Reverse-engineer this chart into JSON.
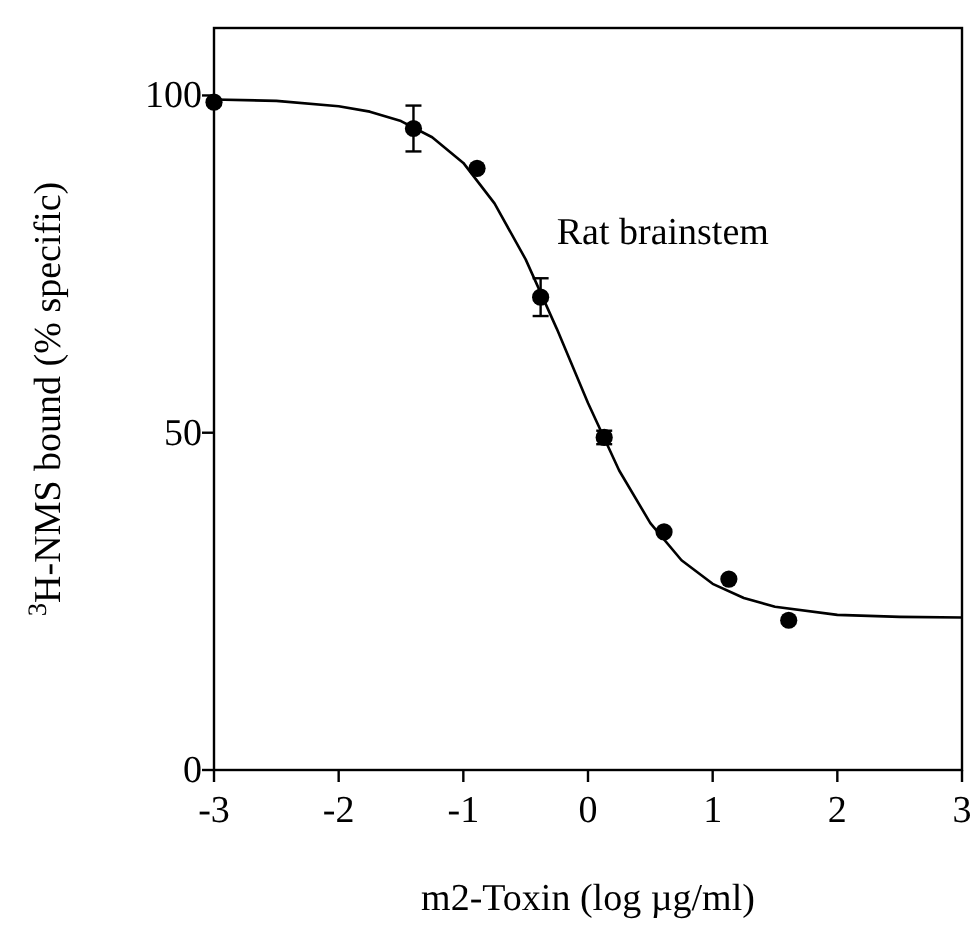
{
  "chart_data": {
    "type": "scatter",
    "xlabel": "m2-Toxin (log µg/ml)",
    "ylabel": "$^{3}$H-NMS bound (% specific)",
    "xlim": [
      -3,
      3
    ],
    "xticks": [
      -3,
      -2,
      -1,
      0,
      1,
      2,
      3
    ],
    "ylim": [
      0,
      110
    ],
    "yticks": [
      0,
      50,
      100
    ],
    "grid": false,
    "annotations": [
      "Rat brainstem"
    ],
    "series": [
      {
        "color": "#000000",
        "marker": "circle",
        "x": [
          -3,
          -1.4,
          -0.89,
          -0.38,
          0.13,
          0.61,
          1.13,
          1.61
        ],
        "values": [
          99.0,
          95.1,
          89.2,
          70.1,
          49.3,
          35.3,
          28.3,
          22.2
        ],
        "errors": [
          null,
          3.4,
          null,
          2.8,
          1,
          null,
          null,
          null
        ]
      },
      {
        "type": "line",
        "color": "#000000",
        "marker": "none",
        "line_style": "solid",
        "x": [
          -3,
          -2.5,
          -2,
          -1.75,
          -1.5,
          -1.25,
          -1,
          -0.75,
          -0.5,
          -0.25,
          0,
          0.25,
          0.5,
          0.75,
          1,
          1.25,
          1.5,
          2,
          2.5,
          3
        ],
        "values": [
          99.4,
          99.2,
          98.4,
          97.6,
          96.2,
          93.8,
          90.0,
          84.0,
          75.7,
          65.4,
          54.4,
          44.4,
          36.6,
          31.1,
          27.6,
          25.5,
          24.2,
          23.0,
          22.7,
          22.6
        ]
      }
    ]
  }
}
